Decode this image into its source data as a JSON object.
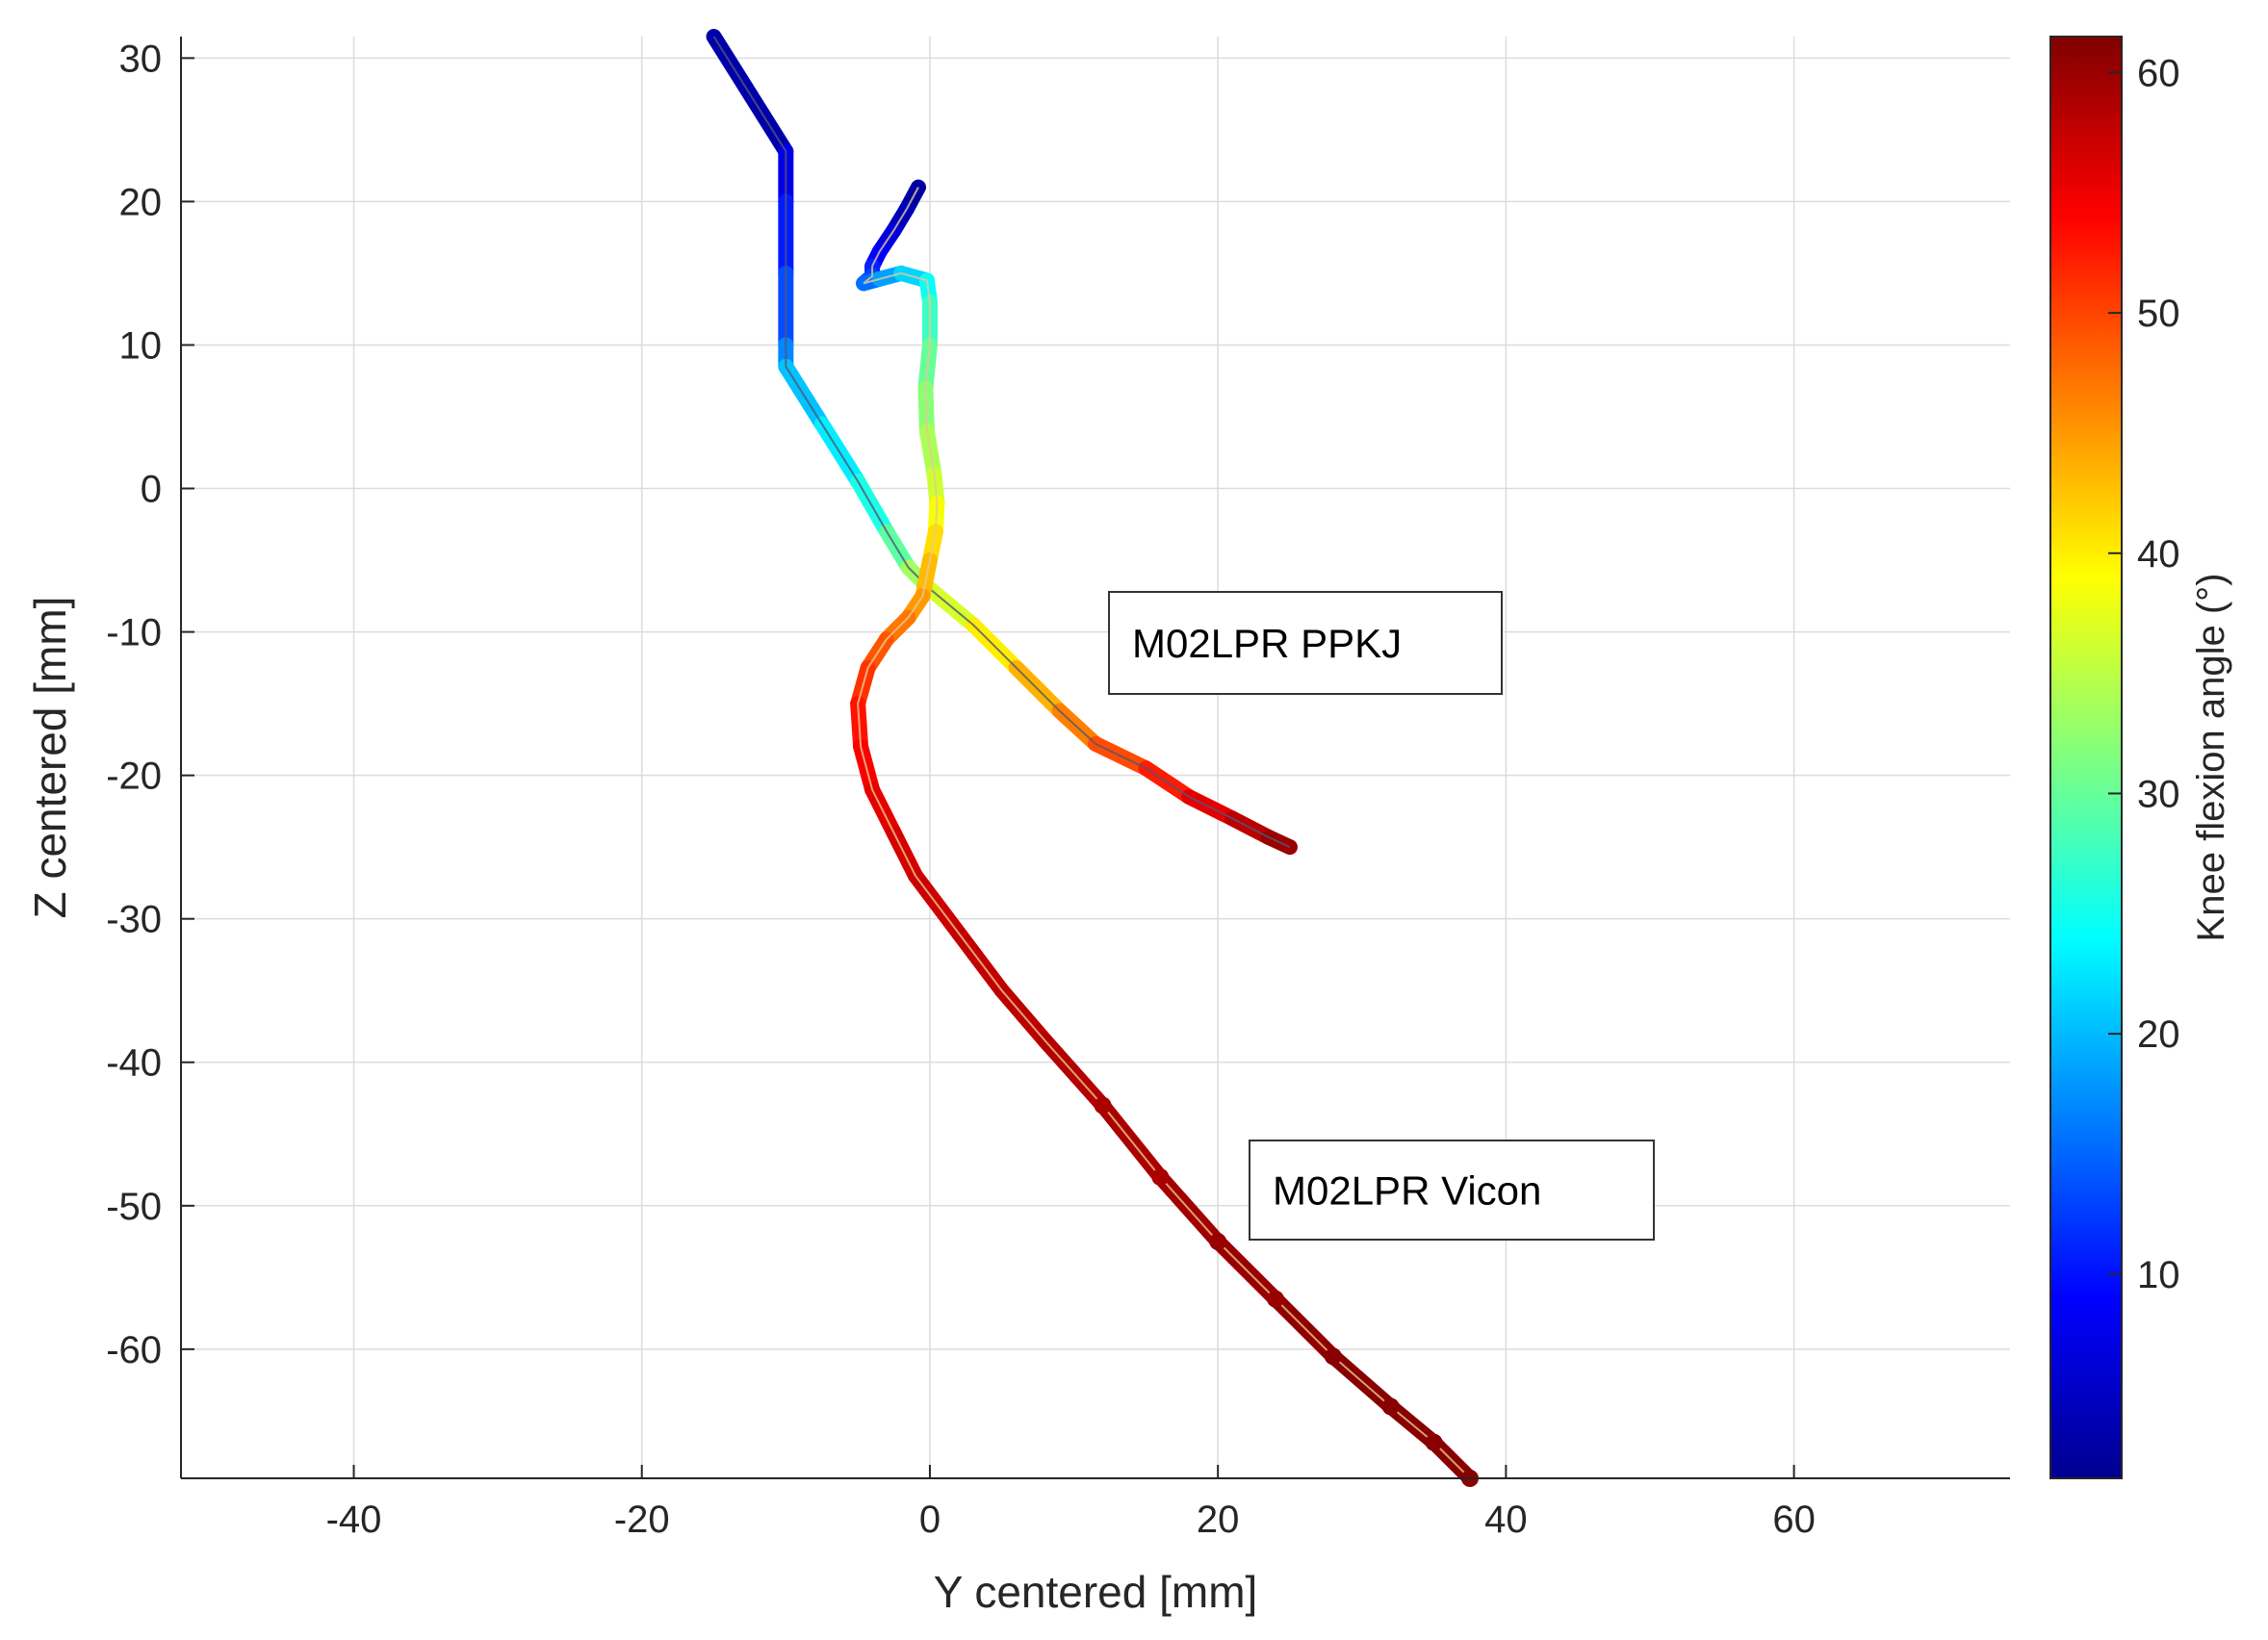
{
  "chart_data": {
    "type": "line",
    "title": "",
    "xlabel": "Y centered [mm]",
    "ylabel": "Z centered [mm]",
    "xlim": [
      -52,
      75
    ],
    "ylim": [
      -69,
      31.5
    ],
    "xticks": [
      -40,
      -20,
      0,
      20,
      40,
      60
    ],
    "yticks": [
      30,
      20,
      10,
      0,
      -10,
      -20,
      -30,
      -40,
      -50,
      -60
    ],
    "grid": true,
    "colorbar": {
      "label": "Knee flexion angle (°)",
      "range": [
        1.5,
        61.5
      ],
      "ticks": [
        10,
        20,
        30,
        40,
        50,
        60
      ],
      "colormap": "jet"
    },
    "series": [
      {
        "name": "M02LPR PPKJ",
        "x": [
          -15,
          -10,
          -10,
          -10,
          -10,
          -10,
          -7.5,
          -5,
          -3,
          -1.5,
          0,
          3,
          6,
          9,
          11.5,
          15,
          18,
          21,
          23.5,
          25
        ],
        "y": [
          31.5,
          23.5,
          20,
          15,
          10,
          8.5,
          4.5,
          0.5,
          -3,
          -5.5,
          -7,
          -9.5,
          -12.5,
          -15.5,
          -17.8,
          -19.5,
          -21.5,
          -23,
          -24.3,
          -25
        ],
        "c": [
          2,
          6,
          9,
          12,
          15,
          19,
          22,
          24,
          27,
          32,
          35,
          38,
          42,
          45,
          48,
          51,
          54,
          57,
          59,
          61
        ]
      },
      {
        "name": "M02LPR Vicon",
        "x": [
          -0.8,
          -1.6,
          -2.5,
          -3.5,
          -4,
          -4,
          -4.6,
          -3.5,
          -2,
          -0.2,
          0,
          0,
          -0.3,
          -0.2,
          0.3,
          0.5,
          0.4,
          0,
          -0.5,
          -1.5,
          -3,
          -4.3,
          -5,
          -4.8,
          -4,
          -2.5,
          -1,
          2,
          5,
          8,
          12,
          16,
          20,
          24,
          28,
          32,
          35,
          37.5
        ],
        "y": [
          21,
          19.5,
          18,
          16.5,
          15.5,
          14.8,
          14.3,
          14.6,
          15,
          14.5,
          13,
          10,
          7,
          4,
          1,
          -1,
          -3,
          -5,
          -7.5,
          -9,
          -10.5,
          -12.5,
          -15,
          -18,
          -21,
          -24,
          -27,
          -31,
          -35,
          -38.5,
          -43,
          -48,
          -52.5,
          -56.5,
          -60.5,
          -64,
          -66.5,
          -69
        ],
        "c": [
          3,
          4,
          6,
          8,
          10,
          12,
          14,
          17,
          20,
          23,
          26,
          29,
          31,
          33,
          35,
          37,
          40,
          42,
          44,
          46,
          48,
          50,
          52,
          54,
          55,
          56,
          57,
          57,
          58,
          58,
          59,
          59,
          60,
          60,
          61,
          61,
          61,
          61
        ]
      }
    ],
    "annotations": [
      {
        "text": "M02LPR PPKJ"
      },
      {
        "text": "M02LPR Vicon"
      }
    ]
  }
}
